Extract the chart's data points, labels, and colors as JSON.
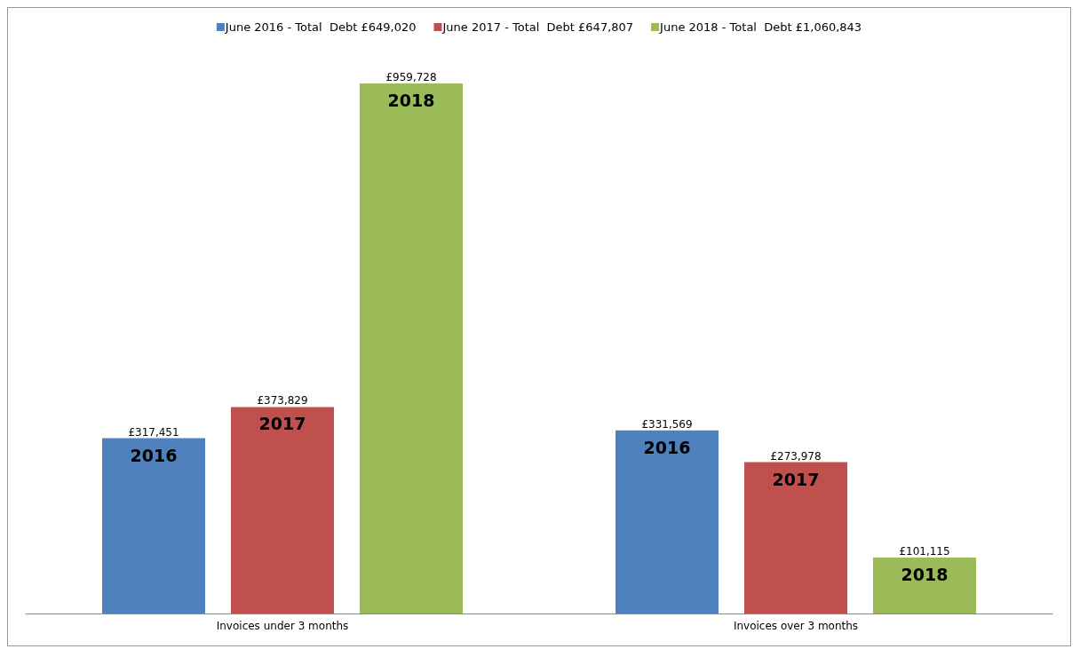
{
  "chart_data": {
    "type": "bar",
    "categories": [
      "Invoices under 3 months",
      "Invoices over 3 months"
    ],
    "series": [
      {
        "name": "June 2016 - Total  Debt £649,020",
        "color": "#4f81bd",
        "values": [
          317451,
          331569
        ],
        "value_labels": [
          "£317,451",
          "£331,569"
        ]
      },
      {
        "name": "June 2017 - Total  Debt £647,807",
        "color": "#c0504d",
        "values": [
          373829,
          273978
        ],
        "value_labels": [
          "£373,829",
          "£273,978"
        ]
      },
      {
        "name": "June 2018 - Total  Debt £1,060,843",
        "color": "#9bbb59",
        "values": [
          959728,
          101115
        ],
        "value_labels": [
          "£959,728",
          "£101,115"
        ]
      }
    ],
    "annotations": [
      "2016",
      "2017",
      "2018",
      "2016",
      "2017",
      "2018"
    ],
    "legend": "top",
    "grid": false
  }
}
